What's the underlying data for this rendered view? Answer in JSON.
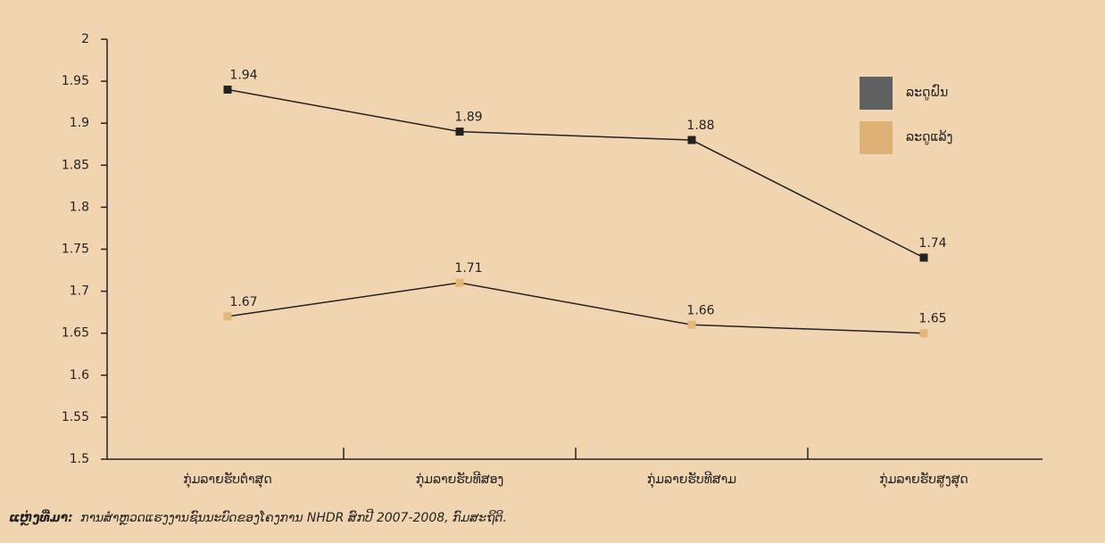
{
  "chart_data": {
    "type": "line",
    "categories": [
      "ກຸ່ມລາຍຮັບຕ່ຳສຸດ",
      "ກຸ່ມລາຍຮັບທີສອງ",
      "ກຸ່ມລາຍຮັບທີສາມ",
      "ກຸ່ມລາຍຮັບສູງສຸດ"
    ],
    "series": [
      {
        "name": "ລະດູຝົນ",
        "color": "#5f6062",
        "marker_color": "#222222",
        "values": [
          1.94,
          1.89,
          1.88,
          1.74
        ]
      },
      {
        "name": "ລະດູແລ້ງ",
        "color": "#deb276",
        "marker_color": "#e3b576",
        "values": [
          1.67,
          1.71,
          1.66,
          1.65
        ]
      }
    ],
    "ylim": [
      1.5,
      2
    ],
    "yticks": [
      1.5,
      1.55,
      1.6,
      1.65,
      1.7,
      1.75,
      1.8,
      1.85,
      1.9,
      1.95,
      2
    ],
    "grid": false,
    "legend": "upper right",
    "source_label": "ແຫຼ່ງທີ່ມາ:",
    "source_text": "ການສຳຫຼວດແຮງງານຊົນນະບົດຂອງໂຄງການ NHDR ສົກປີ 2007-2008, ກົມສະຖິຕິ."
  }
}
